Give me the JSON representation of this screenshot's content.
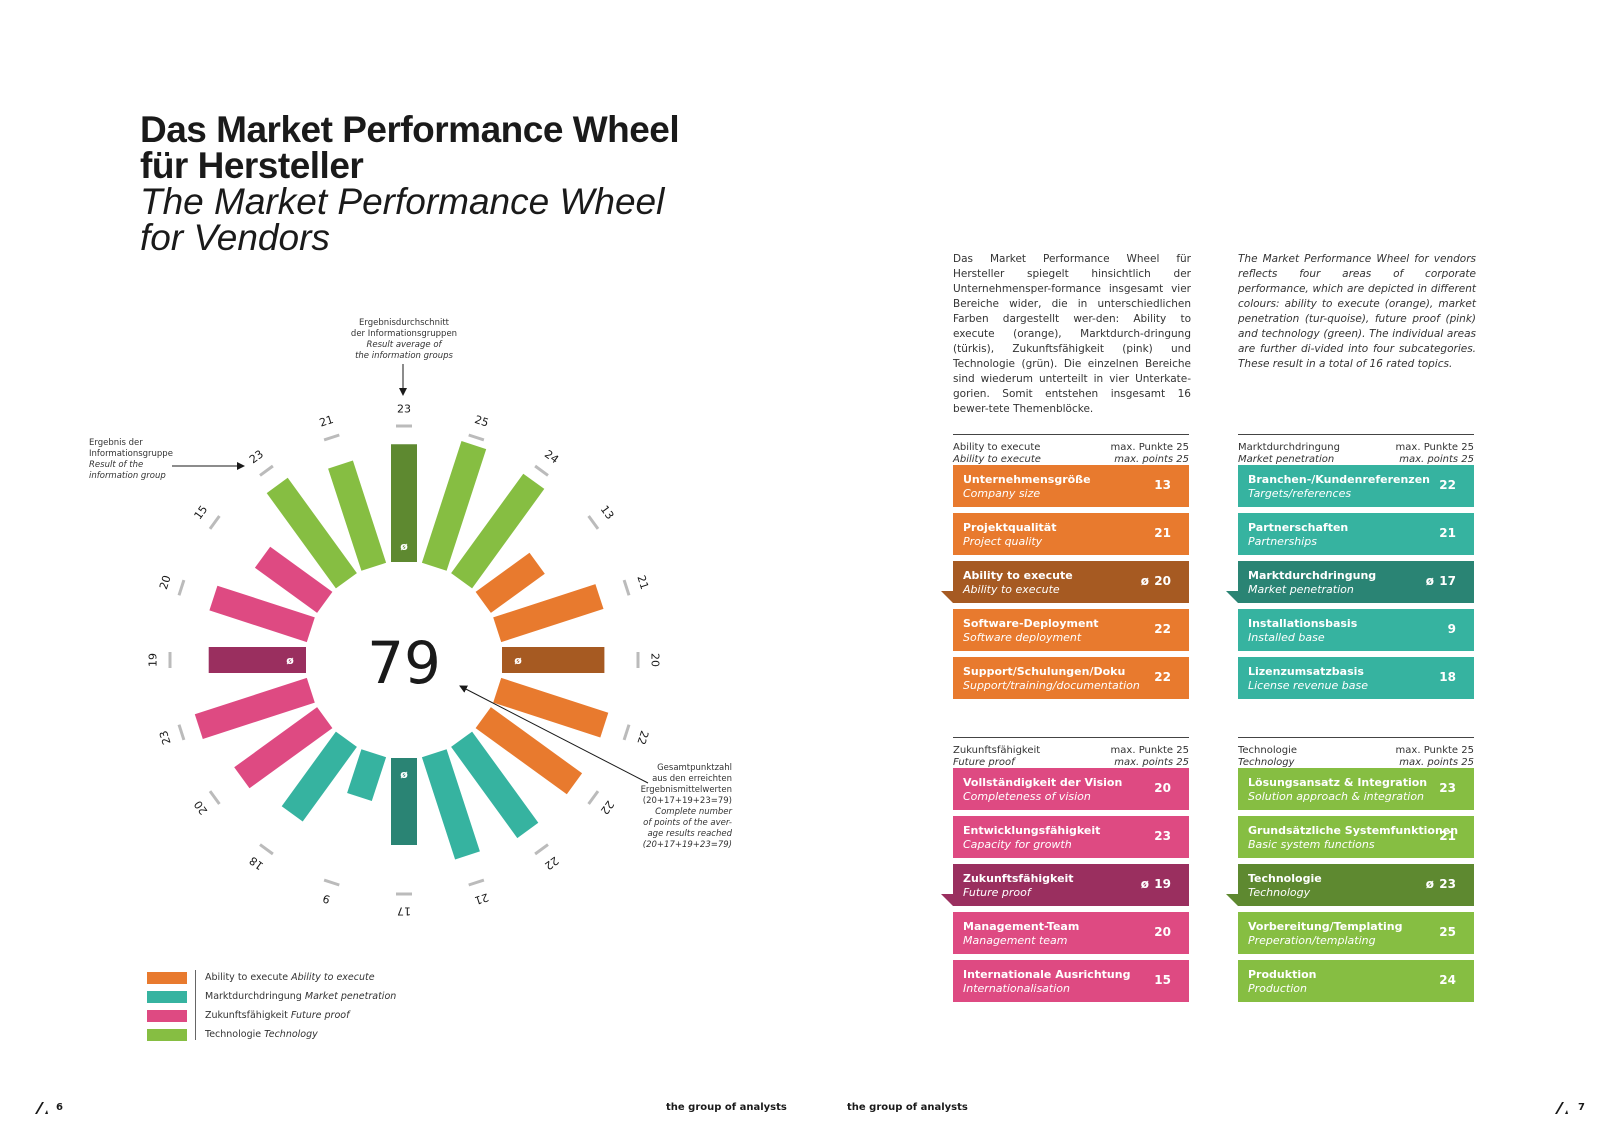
{
  "title": {
    "de_line1": "Das Market Performance Wheel",
    "de_line2": "für Hersteller",
    "en_line1": "The Market Performance Wheel",
    "en_line2": "for Vendors"
  },
  "intro": {
    "de": "Das Market Performance Wheel für Hersteller spiegelt hinsichtlich der Unternehmensper-formance insgesamt vier Bereiche wider, die in unterschiedlichen Farben dargestellt wer-den: Ability to execute (orange), Marktdurch-dringung (türkis), Zukunftsfähigkeit (pink) und Technologie (grün). Die einzelnen Bereiche sind wiederum unterteilt in vier Unterkate-gorien. Somit entstehen insgesamt 16 bewer-tete Themenblöcke.",
    "en": "The Market Performance Wheel for vendors reflects four areas of corporate performance, which are depicted in different colours: ability to execute (orange), market penetration (tur-quoise), future proof (pink) and technology (green). The individual areas are further di-vided into four subcategories. These result in a total of 16 rated topics."
  },
  "annotations": {
    "top_de1": "Ergebnisdurchschnitt",
    "top_de2": "der Informationsgruppen",
    "top_en1": "Result average of",
    "top_en2": "the information groups",
    "left_de1": "Ergebnis der",
    "left_de2": "Informationsgruppe",
    "left_en1": "Result of the",
    "left_en2": "information group",
    "right_de1": "Gesamtpunktzahl",
    "right_de2": "aus den erreichten",
    "right_de3": "Ergebnismittelwerten",
    "right_de4": "(20+17+19+23=79)",
    "right_en1": "Complete number",
    "right_en2": "of points of the aver-",
    "right_en3": "age results reached",
    "right_en4": "(20+17+19+23=79)"
  },
  "colors": {
    "orange": "#E87A2E",
    "orange_dark": "#A65A22",
    "turquoise": "#36B3A0",
    "turquoise_dark": "#2A8474",
    "pink": "#DE4A82",
    "pink_dark": "#9A2F5F",
    "green": "#86BE42",
    "green_dark": "#5E8930",
    "tick": "#bbbbbb"
  },
  "chart_data": {
    "type": "radial-bar",
    "total": "79",
    "max": 25,
    "bars": [
      {
        "label": "23",
        "value": 23,
        "group": "technology",
        "average": true
      },
      {
        "label": "25",
        "value": 25,
        "group": "technology"
      },
      {
        "label": "24",
        "value": 24,
        "group": "technology"
      },
      {
        "label": "13",
        "value": 13,
        "group": "ability"
      },
      {
        "label": "21",
        "value": 21,
        "group": "ability"
      },
      {
        "label": "20",
        "value": 20,
        "group": "ability",
        "average": true
      },
      {
        "label": "22",
        "value": 22,
        "group": "ability"
      },
      {
        "label": "22",
        "value": 22,
        "group": "ability"
      },
      {
        "label": "22",
        "value": 22,
        "group": "market"
      },
      {
        "label": "21",
        "value": 21,
        "group": "market"
      },
      {
        "label": "17",
        "value": 17,
        "group": "market",
        "average": true
      },
      {
        "label": "9",
        "value": 9,
        "group": "market"
      },
      {
        "label": "18",
        "value": 18,
        "group": "market"
      },
      {
        "label": "20",
        "value": 20,
        "group": "future"
      },
      {
        "label": "23",
        "value": 23,
        "group": "future"
      },
      {
        "label": "19",
        "value": 19,
        "group": "future",
        "average": true
      },
      {
        "label": "20",
        "value": 20,
        "group": "future"
      },
      {
        "label": "15",
        "value": 15,
        "group": "future"
      },
      {
        "label": "23",
        "value": 23,
        "group": "technology"
      },
      {
        "label": "21",
        "value": 21,
        "group": "technology"
      }
    ]
  },
  "legend": [
    {
      "color_key": "orange",
      "de": "Ability to execute",
      "en": "Ability to execute"
    },
    {
      "color_key": "turquoise",
      "de": "Marktdurchdringung",
      "en": "Market penetration"
    },
    {
      "color_key": "pink",
      "de": "Zukunftsfähigkeit",
      "en": "Future proof"
    },
    {
      "color_key": "green",
      "de": "Technologie",
      "en": "Technology"
    }
  ],
  "avg_symbol": "ø",
  "panels": [
    {
      "key": "ability",
      "head_de": "Ability to execute",
      "head_en": "Ability to execute",
      "max_de": "max. Punkte 25",
      "max_en": "max. points 25",
      "rows": [
        {
          "de": "Unternehmensgröße",
          "en": "Company size",
          "value": "13"
        },
        {
          "de": "Projektqualität",
          "en": "Project quality",
          "value": "21"
        },
        {
          "de": "Ability to execute",
          "en": "Ability to execute",
          "value": "20",
          "average": true
        },
        {
          "de": "Software-Deployment",
          "en": "Software deployment",
          "value": "22"
        },
        {
          "de": "Support/Schulungen/Doku",
          "en": "Support/training/documentation",
          "value": "22"
        }
      ]
    },
    {
      "key": "market",
      "head_de": "Marktdurchdringung",
      "head_en": "Market penetration",
      "max_de": "max. Punkte 25",
      "max_en": "max. points 25",
      "rows": [
        {
          "de": "Branchen-/Kundenreferenzen",
          "en": "Targets/references",
          "value": "22"
        },
        {
          "de": "Partnerschaften",
          "en": "Partnerships",
          "value": "21"
        },
        {
          "de": "Marktdurchdringung",
          "en": "Market penetration",
          "value": "17",
          "average": true
        },
        {
          "de": "Installationsbasis",
          "en": "Installed base",
          "value": "9"
        },
        {
          "de": "Lizenzumsatzbasis",
          "en": "License revenue base",
          "value": "18"
        }
      ]
    },
    {
      "key": "future",
      "head_de": "Zukunftsfähigkeit",
      "head_en": "Future proof",
      "max_de": "max. Punkte 25",
      "max_en": "max. points 25",
      "rows": [
        {
          "de": "Vollständigkeit der Vision",
          "en": "Completeness of vision",
          "value": "20"
        },
        {
          "de": "Entwicklungsfähigkeit",
          "en": "Capacity for growth",
          "value": "23"
        },
        {
          "de": "Zukunftsfähigkeit",
          "en": "Future proof",
          "value": "19",
          "average": true
        },
        {
          "de": "Management-Team",
          "en": "Management team",
          "value": "20"
        },
        {
          "de": "Internationale Ausrichtung",
          "en": "Internationalisation",
          "value": "15"
        }
      ]
    },
    {
      "key": "technology",
      "head_de": "Technologie",
      "head_en": "Technology",
      "max_de": "max. Punkte 25",
      "max_en": "max. points 25",
      "rows": [
        {
          "de": "Lösungsansatz & Integration",
          "en": "Solution approach & integration",
          "value": "23"
        },
        {
          "de": "Grundsätzliche Systemfunktionen",
          "en": "Basic system functions",
          "value": "21"
        },
        {
          "de": "Technologie",
          "en": "Technology",
          "value": "23",
          "average": true
        },
        {
          "de": "Vorbereitung/Templating",
          "en": "Preperation/templating",
          "value": "25"
        },
        {
          "de": "Produktion",
          "en": "Production",
          "value": "24"
        }
      ]
    }
  ],
  "footer": {
    "page_left": "6",
    "page_right": "7",
    "brand_left": "the group of analysts",
    "brand_right": "the group of analysts"
  }
}
